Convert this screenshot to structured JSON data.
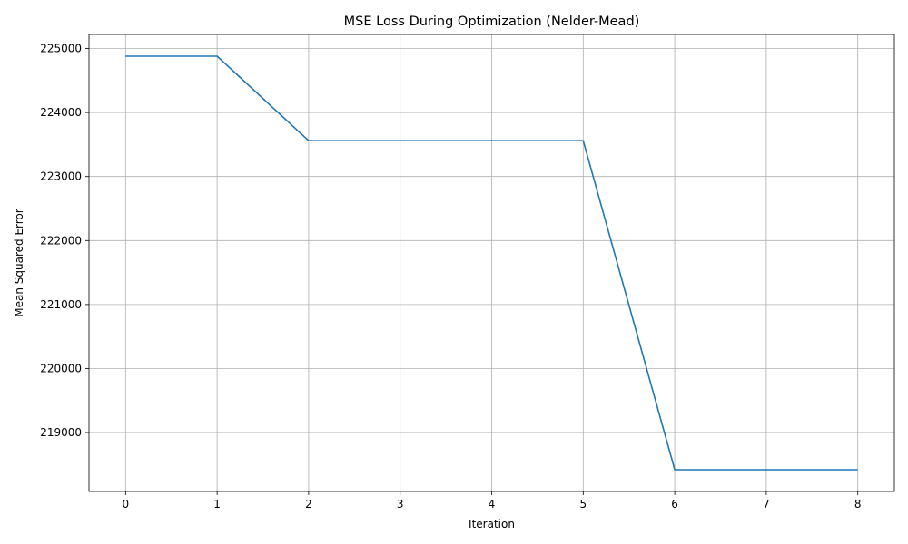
{
  "chart_data": {
    "type": "line",
    "title": "MSE Loss During Optimization (Nelder-Mead)",
    "xlabel": "Iteration",
    "ylabel": "Mean Squared Error",
    "x": [
      0,
      1,
      2,
      3,
      4,
      5,
      6,
      7,
      8
    ],
    "series": [
      {
        "values": [
          224880,
          224880,
          223560,
          223560,
          223560,
          223560,
          218420,
          218420,
          218420
        ],
        "color": "#1f77b4"
      }
    ],
    "xlim": [
      -0.4,
      8.4
    ],
    "ylim": [
      218080,
      225220
    ],
    "xticks": [
      "0",
      "1",
      "2",
      "3",
      "4",
      "5",
      "6",
      "7",
      "8"
    ],
    "yticks": [
      "219000",
      "220000",
      "221000",
      "222000",
      "223000",
      "224000",
      "225000"
    ],
    "grid": true,
    "legend": "none"
  }
}
